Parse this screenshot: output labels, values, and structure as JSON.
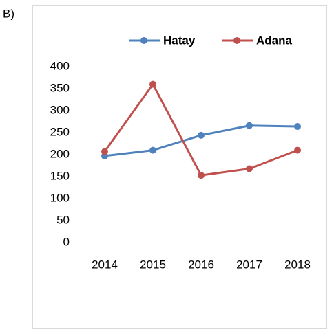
{
  "chart_data": {
    "type": "line",
    "label": "B)",
    "categories": [
      "2014",
      "2015",
      "2016",
      "2017",
      "2018"
    ],
    "series": [
      {
        "name": "Hatay",
        "color": "#4f81bd",
        "values": [
          197,
          210,
          244,
          266,
          264
        ]
      },
      {
        "name": "Adana",
        "color": "#c0504d",
        "values": [
          207,
          360,
          153,
          168,
          210
        ]
      }
    ],
    "ylim": [
      0,
      400
    ],
    "yticks": [
      0,
      50,
      100,
      150,
      200,
      250,
      300,
      350,
      400
    ],
    "grid": false,
    "legend": "top"
  }
}
